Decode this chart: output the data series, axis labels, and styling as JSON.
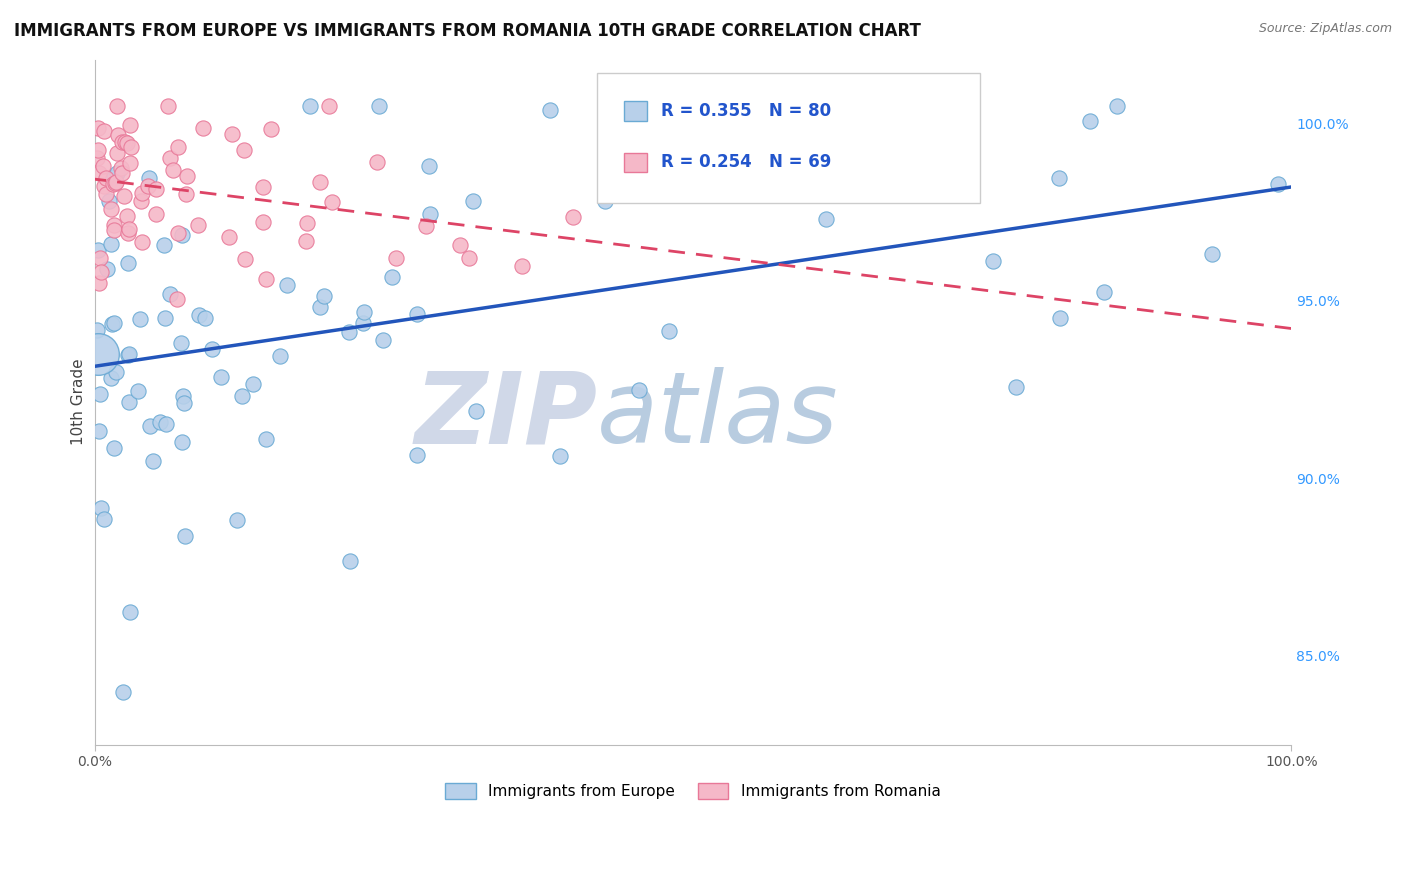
{
  "title": "IMMIGRANTS FROM EUROPE VS IMMIGRANTS FROM ROMANIA 10TH GRADE CORRELATION CHART",
  "source_text": "Source: ZipAtlas.com",
  "ylabel": "10th Grade",
  "watermark_zip": "ZIP",
  "watermark_atlas": "atlas",
  "x_min": 0.0,
  "x_max": 100.0,
  "y_min": 82.5,
  "y_max": 101.8,
  "y_ticks": [
    85.0,
    90.0,
    95.0,
    100.0
  ],
  "y_tick_labels": [
    "85.0%",
    "90.0%",
    "95.0%",
    "100.0%"
  ],
  "blue_R": 0.355,
  "blue_N": 80,
  "pink_R": 0.254,
  "pink_N": 69,
  "blue_color": "#b8d0ea",
  "pink_color": "#f5b8c8",
  "blue_edge": "#6aaad4",
  "pink_edge": "#e87898",
  "trend_blue": "#2255bb",
  "trend_pink": "#dd4466",
  "legend_blue_label": "Immigrants from Europe",
  "legend_pink_label": "Immigrants from Romania",
  "dot_size": 120,
  "large_blue_size": 900,
  "large_blue_x": 0.3,
  "large_blue_y": 93.5
}
